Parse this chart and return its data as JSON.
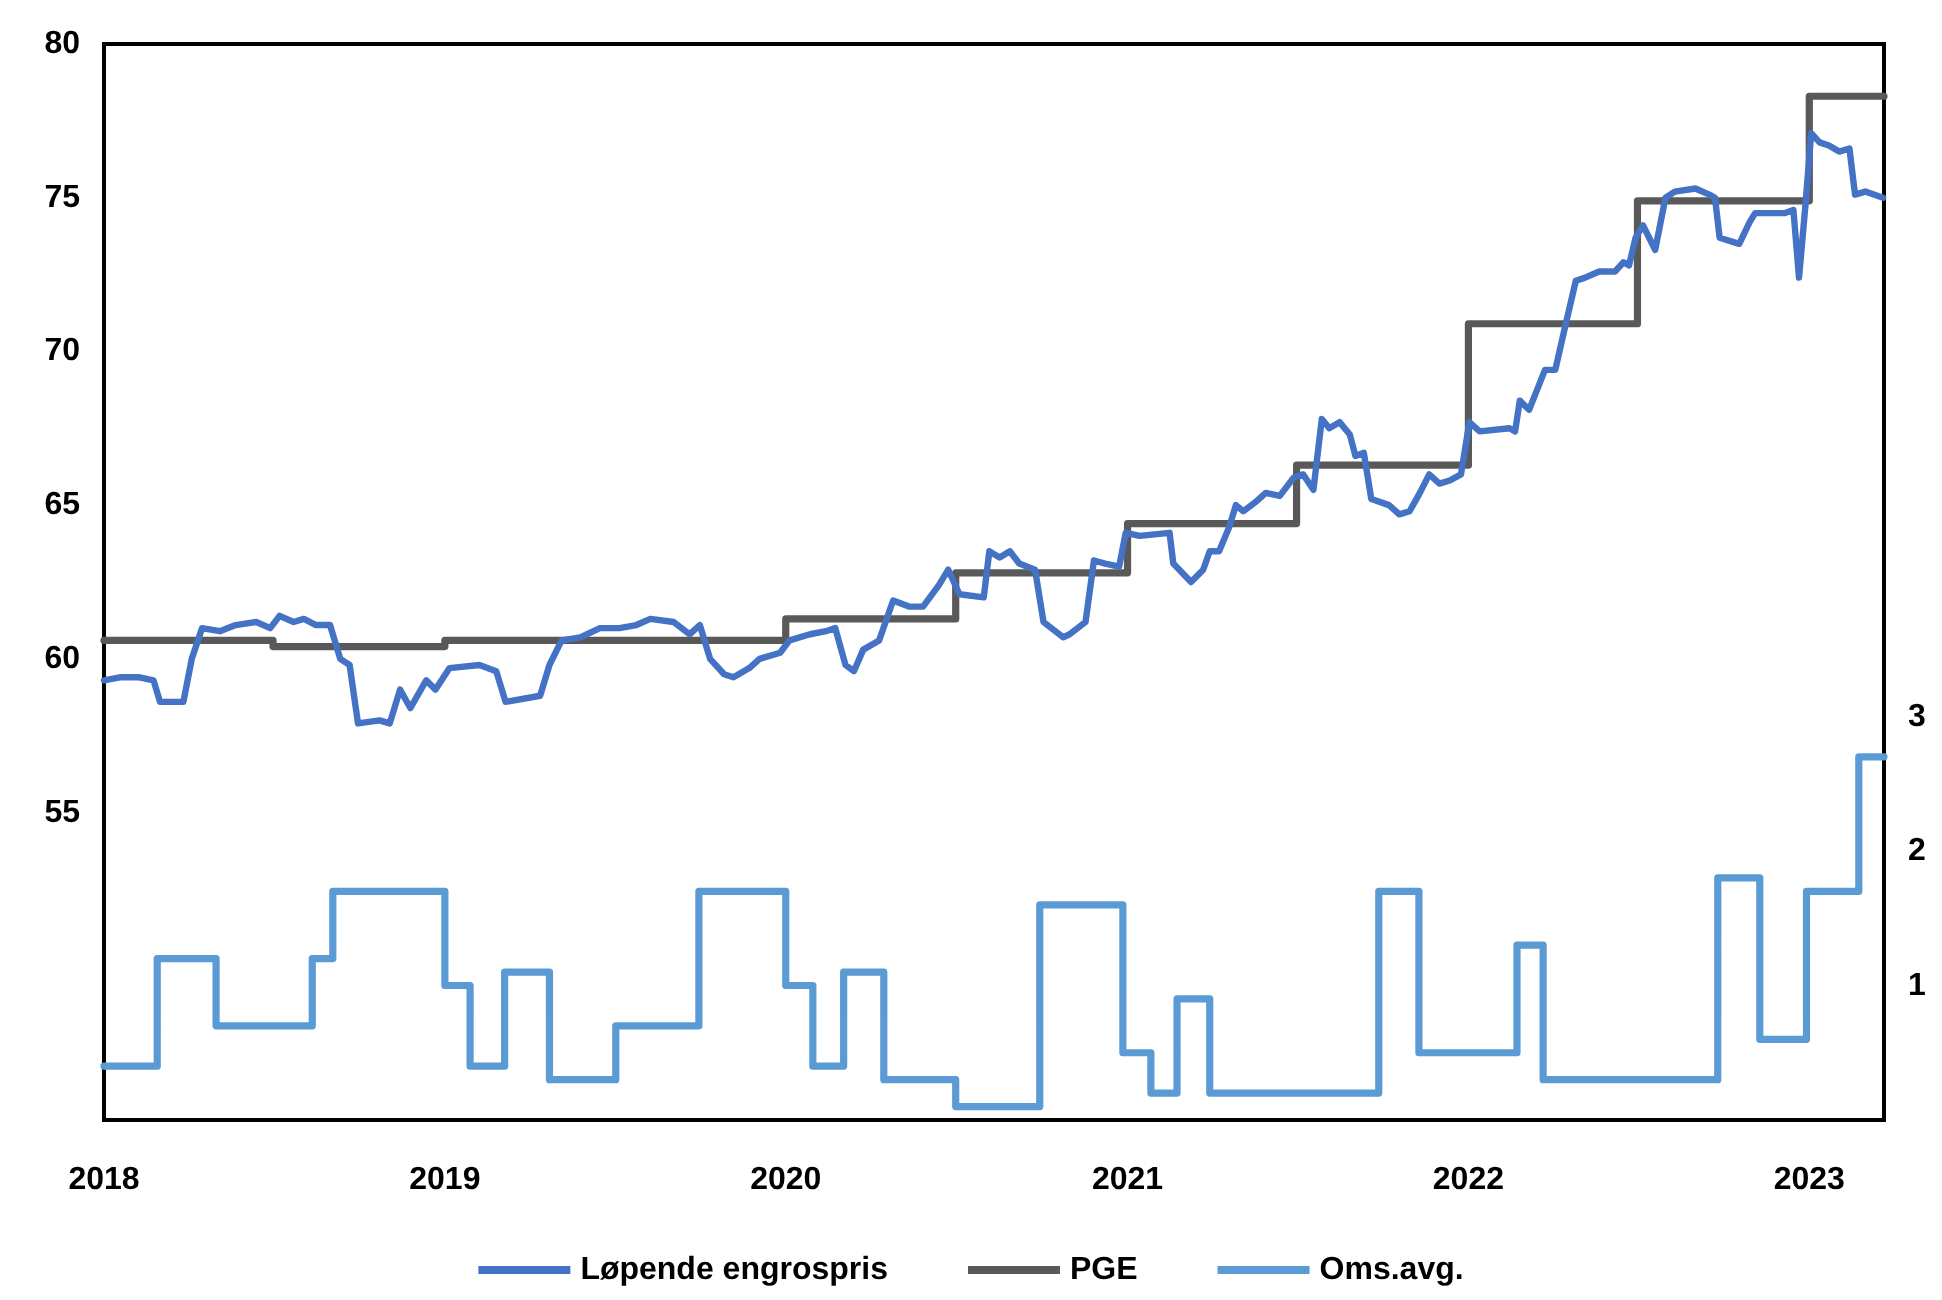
{
  "chart_data": {
    "type": "line",
    "xlim": [
      "2018-01-01",
      "2023-03-22"
    ],
    "xticks": [
      "2018",
      "2019",
      "2020",
      "2021",
      "2022",
      "2023"
    ],
    "ylim": [
      45,
      80
    ],
    "yticks": [
      55,
      60,
      65,
      70,
      75,
      80
    ],
    "y2lim": [
      0,
      8
    ],
    "y2ticks": [
      1,
      2,
      3
    ],
    "legend": "bottom",
    "marker": "none",
    "series": [
      {
        "name": "Løpende engrospris",
        "color": "#4472c4",
        "x": [
          "2018-01-01",
          "2018-01-18",
          "2018-02-08",
          "2018-02-23",
          "2018-03-02",
          "2018-03-27",
          "2018-04-05",
          "2018-04-16",
          "2018-05-05",
          "2018-05-22",
          "2018-06-13",
          "2018-06-28",
          "2018-07-08",
          "2018-07-23",
          "2018-08-03",
          "2018-08-16",
          "2018-08-31",
          "2018-09-11",
          "2018-09-21",
          "2018-09-30",
          "2018-10-23",
          "2018-11-03",
          "2018-11-14",
          "2018-11-25",
          "2018-12-12",
          "2018-12-22",
          "2019-01-06",
          "2019-02-07",
          "2019-02-25",
          "2019-03-07",
          "2019-04-13",
          "2019-04-23",
          "2019-05-06",
          "2019-05-26",
          "2019-06-16",
          "2019-07-07",
          "2019-07-25",
          "2019-08-09",
          "2019-09-03",
          "2019-09-20",
          "2019-10-01",
          "2019-10-12",
          "2019-10-27",
          "2019-11-06",
          "2019-11-23",
          "2019-12-04",
          "2019-12-26",
          "2020-01-05",
          "2020-01-27",
          "2020-02-13",
          "2020-02-23",
          "2020-03-05",
          "2020-03-14",
          "2020-03-24",
          "2020-04-10",
          "2020-04-25",
          "2020-05-12",
          "2020-05-27",
          "2020-06-13",
          "2020-06-23",
          "2020-07-05",
          "2020-07-31",
          "2020-08-06",
          "2020-08-17",
          "2020-08-28",
          "2020-09-07",
          "2020-09-24",
          "2020-10-03",
          "2020-10-24",
          "2020-10-31",
          "2020-11-17",
          "2020-11-26",
          "2020-12-08",
          "2020-12-23",
          "2020-12-30",
          "2021-01-14",
          "2021-02-15",
          "2021-02-19",
          "2021-03-10",
          "2021-03-23",
          "2021-03-30",
          "2021-04-09",
          "2021-04-20",
          "2021-04-27",
          "2021-05-05",
          "2021-05-18",
          "2021-05-29",
          "2021-06-13",
          "2021-06-28",
          "2021-07-08",
          "2021-07-19",
          "2021-07-28",
          "2021-08-05",
          "2021-08-16",
          "2021-08-27",
          "2021-09-02",
          "2021-09-11",
          "2021-09-19",
          "2021-10-08",
          "2021-10-19",
          "2021-10-30",
          "2021-11-10",
          "2021-11-20",
          "2021-12-01",
          "2021-12-12",
          "2021-12-24",
          "2022-01-02",
          "2022-01-13",
          "2022-02-14",
          "2022-02-20",
          "2022-02-25",
          "2022-03-07",
          "2022-03-24",
          "2022-04-04",
          "2022-04-13",
          "2022-04-26",
          "2022-05-06",
          "2022-05-21",
          "2022-06-07",
          "2022-06-16",
          "2022-06-22",
          "2022-06-29",
          "2022-07-07",
          "2022-07-20",
          "2022-07-31",
          "2022-08-10",
          "2022-09-01",
          "2022-09-16",
          "2022-09-22",
          "2022-09-27",
          "2022-10-18",
          "2022-10-29",
          "2022-11-04",
          "2022-12-06",
          "2022-12-15",
          "2022-12-21",
          "2022-12-28",
          "2023-01-03",
          "2023-01-12",
          "2023-01-22",
          "2023-02-02",
          "2023-02-13",
          "2023-02-19",
          "2023-03-02",
          "2023-03-21"
        ],
        "values": [
          59.3,
          59.4,
          59.4,
          59.3,
          58.6,
          58.6,
          60.0,
          61.0,
          60.9,
          61.1,
          61.2,
          61.0,
          61.4,
          61.2,
          61.3,
          61.1,
          61.1,
          60.0,
          59.8,
          57.9,
          58.0,
          57.9,
          59.0,
          58.4,
          59.3,
          59.0,
          59.7,
          59.8,
          59.6,
          58.6,
          58.8,
          59.8,
          60.6,
          60.7,
          61.0,
          61.0,
          61.1,
          61.3,
          61.2,
          60.8,
          61.1,
          60.0,
          59.5,
          59.4,
          59.7,
          60.0,
          60.2,
          60.6,
          60.8,
          60.9,
          61.0,
          59.8,
          59.6,
          60.3,
          60.6,
          61.9,
          61.7,
          61.7,
          62.4,
          62.9,
          62.1,
          62.0,
          63.5,
          63.3,
          63.5,
          63.1,
          62.9,
          61.2,
          60.7,
          60.8,
          61.2,
          63.2,
          63.1,
          63.0,
          64.1,
          64.0,
          64.1,
          63.1,
          62.5,
          62.9,
          63.5,
          63.5,
          64.3,
          65.0,
          64.8,
          65.1,
          65.4,
          65.3,
          65.9,
          66.0,
          65.5,
          67.8,
          67.5,
          67.7,
          67.3,
          66.6,
          66.7,
          65.2,
          65.0,
          64.7,
          64.8,
          65.4,
          66.0,
          65.7,
          65.8,
          66.0,
          67.7,
          67.4,
          67.5,
          67.4,
          68.4,
          68.1,
          69.4,
          69.4,
          70.6,
          72.3,
          72.4,
          72.6,
          72.6,
          72.9,
          72.8,
          73.7,
          74.1,
          73.3,
          75.0,
          75.2,
          75.3,
          75.1,
          75.0,
          73.7,
          73.5,
          74.2,
          74.5,
          74.5,
          74.6,
          72.4,
          74.8,
          77.1,
          76.8,
          76.7,
          76.5,
          76.6,
          75.1,
          75.2,
          75.0
        ]
      },
      {
        "name": "PGE",
        "type": "step",
        "color": "#595959",
        "x": [
          "2018-01-01",
          "2018-07-01",
          "2019-01-01",
          "2020-01-01",
          "2020-07-01",
          "2021-01-01",
          "2021-07-01",
          "2022-01-01",
          "2022-07-01",
          "2023-01-01",
          "2023-03-22"
        ],
        "values": [
          60.6,
          60.4,
          60.6,
          61.3,
          62.8,
          64.4,
          66.3,
          70.9,
          74.9,
          78.3,
          78.3
        ]
      },
      {
        "name": "Oms.avg.",
        "type": "step",
        "color": "#5b9bd5",
        "axis": "y2",
        "x": [
          "2018-01-01",
          "2018-02-27",
          "2018-05-01",
          "2018-08-12",
          "2018-09-03",
          "2019-01-01",
          "2019-01-28",
          "2019-03-06",
          "2019-04-23",
          "2019-07-03",
          "2019-09-30",
          "2020-01-01",
          "2020-01-30",
          "2020-03-03",
          "2020-04-15",
          "2020-07-01",
          "2020-09-29",
          "2020-12-27",
          "2021-01-26",
          "2021-02-23",
          "2021-03-30",
          "2021-09-27",
          "2021-11-09",
          "2022-02-22",
          "2022-03-22",
          "2022-09-25",
          "2022-11-09",
          "2022-12-29",
          "2023-02-23",
          "2023-03-22"
        ],
        "values": [
          0.4,
          1.2,
          0.7,
          1.2,
          1.7,
          1.0,
          0.4,
          1.1,
          0.3,
          0.7,
          1.7,
          1.0,
          0.4,
          1.1,
          0.3,
          0.1,
          1.6,
          0.5,
          0.2,
          0.9,
          0.2,
          1.7,
          0.5,
          1.3,
          0.3,
          1.8,
          0.6,
          1.7,
          2.7,
          2.7
        ]
      }
    ]
  }
}
